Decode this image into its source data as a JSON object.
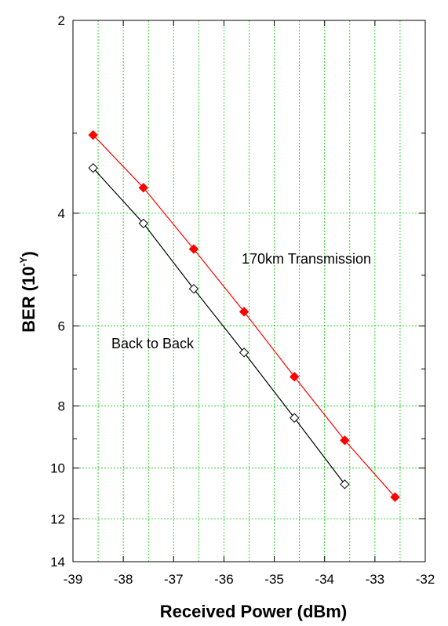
{
  "chart_data": {
    "type": "line",
    "title": "",
    "xlabel": "Received Power (dBm)",
    "ylabel": "BER (10",
    "ylabel_superscript": "-Y",
    "ylabel_suffix": ")",
    "xlim": [
      -39,
      -32
    ],
    "x_ticks": [
      -39,
      -38,
      -37,
      -36,
      -35,
      -34,
      -33,
      -32
    ],
    "x_tick_labels": [
      "-39",
      "-38",
      "-37",
      "-36",
      "-35",
      "-34",
      "-33",
      "-32"
    ],
    "x_minor_step": 0.5,
    "y_scale": "log(y), axis inverted (2 at top, 14 at bottom)",
    "ylim": [
      2,
      14
    ],
    "y_major_ticks": [
      2,
      4,
      6,
      8,
      10,
      12,
      14
    ],
    "y_tick_labels": [
      "2",
      "4",
      "6",
      "8",
      "10",
      "12",
      "14"
    ],
    "y_minor_ticks": [
      3,
      5,
      7,
      9
    ],
    "grid": true,
    "grid_color": "#00cc00",
    "series": [
      {
        "name": "170km Transmission",
        "color": "#ff0000",
        "marker": "filled-diamond",
        "x": [
          -38.6,
          -37.6,
          -36.6,
          -35.6,
          -34.6,
          -33.6,
          -32.6
        ],
        "y": [
          3.02,
          3.65,
          4.55,
          5.7,
          7.2,
          9.05,
          11.1
        ]
      },
      {
        "name": "Back to Back",
        "color": "#000000",
        "marker": "open-diamond",
        "x": [
          -38.6,
          -37.6,
          -36.6,
          -35.6,
          -34.6,
          -33.6
        ],
        "y": [
          3.4,
          4.15,
          5.25,
          6.6,
          8.35,
          10.6
        ]
      }
    ],
    "annotations": [
      "170km Transmission",
      "Back to Back"
    ]
  }
}
